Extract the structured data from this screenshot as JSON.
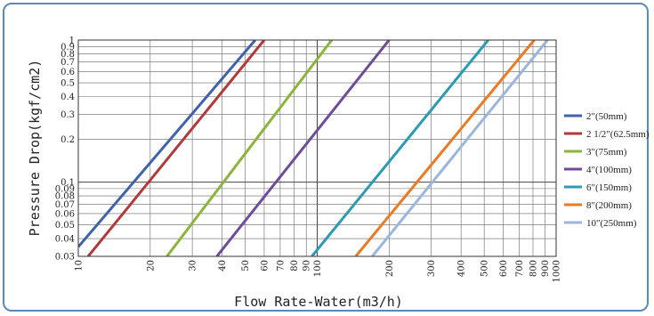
{
  "chart_data": {
    "type": "line",
    "xlabel": "Flow Rate-Water(m3/h)",
    "ylabel": "Pressure Drop(kgf/cm2)",
    "xscale": "log",
    "yscale": "log",
    "xlim": [
      10,
      1000
    ],
    "ylim": [
      0.03,
      1
    ],
    "grid": true,
    "legend_position": "right",
    "x_ticks": [
      {
        "v": 10,
        "label": "10"
      },
      {
        "v": 20,
        "label": "20"
      },
      {
        "v": 30,
        "label": "30"
      },
      {
        "v": 40,
        "label": "40"
      },
      {
        "v": 50,
        "label": "50"
      },
      {
        "v": 60,
        "label": "60"
      },
      {
        "v": 70,
        "label": "70"
      },
      {
        "v": 80,
        "label": "80"
      },
      {
        "v": 90,
        "label": "90"
      },
      {
        "v": 100,
        "label": "100"
      },
      {
        "v": 200,
        "label": "200"
      },
      {
        "v": 300,
        "label": "300"
      },
      {
        "v": 400,
        "label": "400"
      },
      {
        "v": 500,
        "label": "500"
      },
      {
        "v": 600,
        "label": "600"
      },
      {
        "v": 700,
        "label": "700"
      },
      {
        "v": 800,
        "label": "800"
      },
      {
        "v": 900,
        "label": "900"
      },
      {
        "v": 1000,
        "label": "1000"
      }
    ],
    "y_ticks": [
      {
        "v": 0.03,
        "label": "0.03"
      },
      {
        "v": 0.04,
        "label": "0.04"
      },
      {
        "v": 0.05,
        "label": "0.05"
      },
      {
        "v": 0.06,
        "label": "0.06"
      },
      {
        "v": 0.07,
        "label": "0.07"
      },
      {
        "v": 0.08,
        "label": "0.08"
      },
      {
        "v": 0.09,
        "label": "0.09"
      },
      {
        "v": 0.1,
        "label": "0.1"
      },
      {
        "v": 0.2,
        "label": "0.2"
      },
      {
        "v": 0.3,
        "label": "0.3"
      },
      {
        "v": 0.4,
        "label": "0.4"
      },
      {
        "v": 0.5,
        "label": "0.5"
      },
      {
        "v": 0.6,
        "label": "0.6"
      },
      {
        "v": 0.7,
        "label": "0.7"
      },
      {
        "v": 0.8,
        "label": "0.8"
      },
      {
        "v": 0.9,
        "label": "0.9"
      },
      {
        "v": 1,
        "label": "1"
      }
    ],
    "series": [
      {
        "name": "2\"(50mm)",
        "color": "#3f62a8",
        "points": [
          [
            10,
            0.035
          ],
          [
            55,
            1
          ]
        ]
      },
      {
        "name": "2 1/2\"(62.5mm)",
        "color": "#b03a3a",
        "points": [
          [
            11,
            0.03
          ],
          [
            60,
            1
          ]
        ]
      },
      {
        "name": "3\"(75mm)",
        "color": "#8db33d",
        "points": [
          [
            23.5,
            0.03
          ],
          [
            115,
            1
          ]
        ]
      },
      {
        "name": "4\"(100mm)",
        "color": "#6f4c99",
        "points": [
          [
            38,
            0.03
          ],
          [
            200,
            1
          ]
        ]
      },
      {
        "name": "6\"(150mm)",
        "color": "#2b9bb3",
        "points": [
          [
            95,
            0.03
          ],
          [
            520,
            1
          ]
        ]
      },
      {
        "name": "8\"(200mm)",
        "color": "#ea7a24",
        "points": [
          [
            145,
            0.03
          ],
          [
            810,
            1
          ]
        ]
      },
      {
        "name": "10\"(250mm)",
        "color": "#9bb6dd",
        "points": [
          [
            170,
            0.03
          ],
          [
            920,
            1
          ]
        ]
      }
    ]
  }
}
